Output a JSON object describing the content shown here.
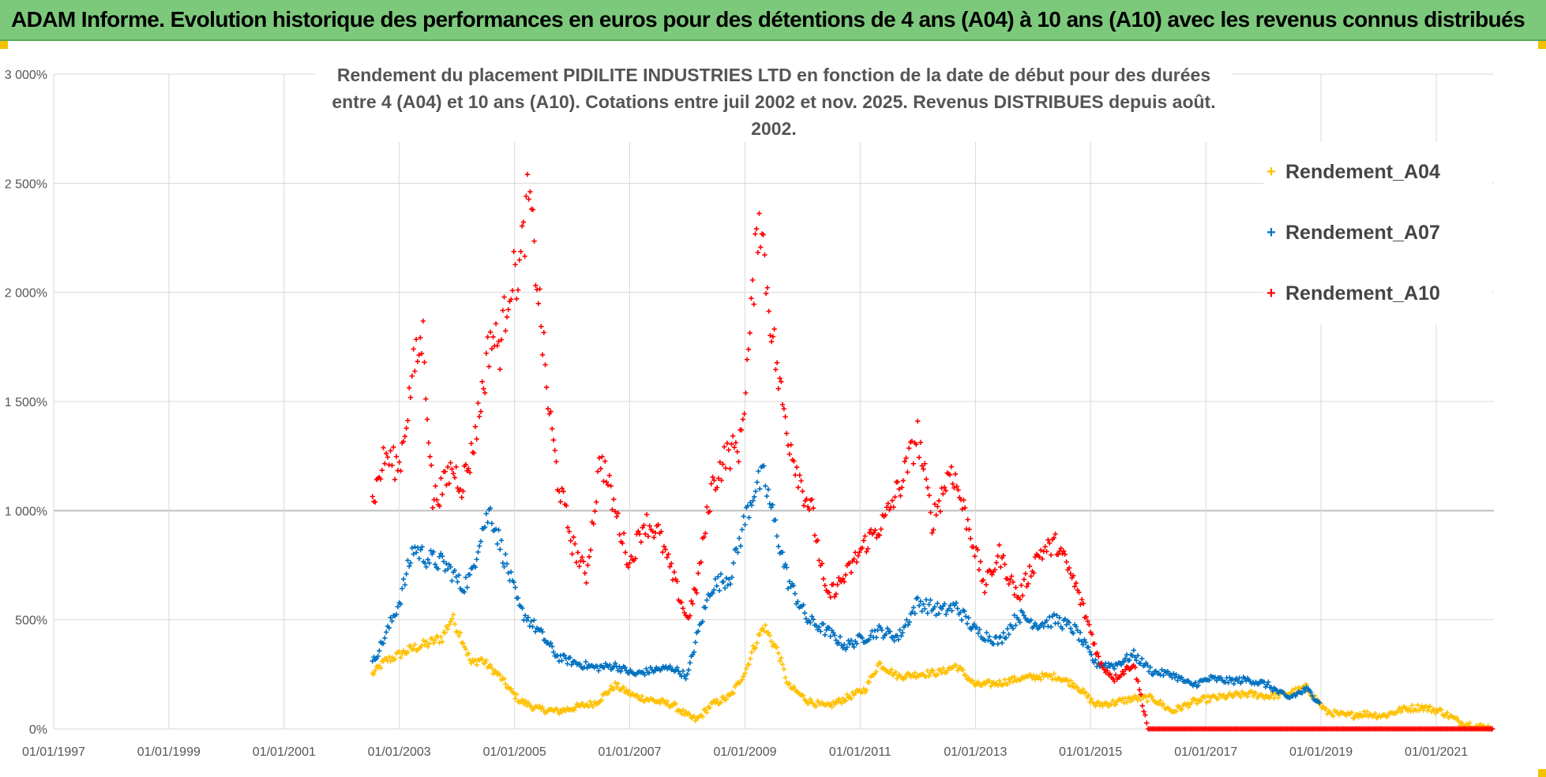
{
  "header": {
    "title": "ADAM Informe. Evolution historique des performances en euros pour des détentions de 4 ans (A04) à 10 ans (A10) avec les revenus connus distribués"
  },
  "colors": {
    "banner": "#7dc97c",
    "A04": "#ffc000",
    "A07": "#0070c0",
    "A10": "#ff0000",
    "grid": "#d9d9d9"
  },
  "chart_data": {
    "type": "scatter",
    "title": "",
    "subtitle_line1": "Rendement du placement PIDILITE INDUSTRIES LTD en fonction de la date de début pour des durées",
    "subtitle_line2": "entre 4 (A04) et 10 ans (A10). Cotations entre juil 2002 et nov. 2025. Revenus DISTRIBUES depuis août. 2002.",
    "xlabel": "",
    "ylabel": "",
    "xlim": [
      "1997-01-01",
      "2022-01-01"
    ],
    "ylim": [
      0,
      3000
    ],
    "y_unit": "%",
    "grid": true,
    "legend_position": "right",
    "x_tick_labels": [
      "01/01/1997",
      "01/01/1999",
      "01/01/2001",
      "01/01/2003",
      "01/01/2005",
      "01/01/2007",
      "01/01/2009",
      "01/01/2011",
      "01/01/2013",
      "01/01/2015",
      "01/01/2017",
      "01/01/2019",
      "01/01/2021"
    ],
    "y_tick_labels": [
      "0%",
      "500%",
      "1 000%",
      "1 500%",
      "2 000%",
      "2 500%",
      "3 000%"
    ],
    "y_tick_values": [
      0,
      500,
      1000,
      1500,
      2000,
      2500,
      3000
    ],
    "series": [
      {
        "name": "Rendement_A04",
        "marker": "+",
        "points": [
          [
            "2002-07-15",
            250
          ],
          [
            "2002-10-01",
            310
          ],
          [
            "2003-01-01",
            340
          ],
          [
            "2003-04-01",
            370
          ],
          [
            "2003-07-01",
            390
          ],
          [
            "2003-10-01",
            420
          ],
          [
            "2003-12-01",
            510
          ],
          [
            "2004-02-01",
            420
          ],
          [
            "2004-04-01",
            300
          ],
          [
            "2004-06-01",
            320
          ],
          [
            "2004-08-01",
            280
          ],
          [
            "2004-10-01",
            240
          ],
          [
            "2004-12-01",
            180
          ],
          [
            "2005-02-01",
            130
          ],
          [
            "2005-06-01",
            90
          ],
          [
            "2005-10-01",
            80
          ],
          [
            "2006-02-01",
            100
          ],
          [
            "2006-06-01",
            120
          ],
          [
            "2006-10-01",
            200
          ],
          [
            "2007-02-01",
            150
          ],
          [
            "2007-06-01",
            130
          ],
          [
            "2007-10-01",
            110
          ],
          [
            "2008-01-01",
            60
          ],
          [
            "2008-03-01",
            40
          ],
          [
            "2008-06-01",
            110
          ],
          [
            "2008-10-01",
            150
          ],
          [
            "2009-01-01",
            260
          ],
          [
            "2009-03-01",
            380
          ],
          [
            "2009-05-01",
            470
          ],
          [
            "2009-08-01",
            350
          ],
          [
            "2009-10-01",
            200
          ],
          [
            "2010-02-01",
            130
          ],
          [
            "2010-06-01",
            100
          ],
          [
            "2010-10-01",
            140
          ],
          [
            "2011-02-01",
            180
          ],
          [
            "2011-05-01",
            300
          ],
          [
            "2011-09-01",
            240
          ],
          [
            "2012-01-01",
            250
          ],
          [
            "2012-06-01",
            260
          ],
          [
            "2012-09-01",
            290
          ],
          [
            "2013-01-01",
            200
          ],
          [
            "2013-06-01",
            210
          ],
          [
            "2013-10-01",
            230
          ],
          [
            "2014-02-01",
            240
          ],
          [
            "2014-06-01",
            240
          ],
          [
            "2014-10-01",
            200
          ],
          [
            "2015-02-01",
            110
          ],
          [
            "2015-06-01",
            120
          ],
          [
            "2015-10-01",
            140
          ],
          [
            "2016-02-01",
            140
          ],
          [
            "2016-06-01",
            80
          ],
          [
            "2016-10-01",
            120
          ],
          [
            "2017-02-01",
            140
          ],
          [
            "2017-06-01",
            150
          ],
          [
            "2017-10-01",
            160
          ],
          [
            "2018-02-01",
            150
          ],
          [
            "2018-06-01",
            160
          ],
          [
            "2018-10-01",
            190
          ],
          [
            "2019-02-01",
            80
          ],
          [
            "2019-06-01",
            60
          ],
          [
            "2019-10-01",
            70
          ],
          [
            "2020-02-01",
            60
          ],
          [
            "2020-06-01",
            90
          ],
          [
            "2020-10-01",
            100
          ],
          [
            "2021-02-01",
            80
          ],
          [
            "2021-06-01",
            30
          ],
          [
            "2021-10-01",
            10
          ],
          [
            "2022-01-01",
            5
          ]
        ]
      },
      {
        "name": "Rendement_A07",
        "marker": "+",
        "points": [
          [
            "2002-07-15",
            300
          ],
          [
            "2002-10-01",
            420
          ],
          [
            "2003-01-01",
            580
          ],
          [
            "2003-04-01",
            830
          ],
          [
            "2003-07-01",
            780
          ],
          [
            "2003-10-01",
            760
          ],
          [
            "2003-12-01",
            720
          ],
          [
            "2004-02-01",
            650
          ],
          [
            "2004-04-01",
            700
          ],
          [
            "2004-06-01",
            900
          ],
          [
            "2004-08-01",
            1000
          ],
          [
            "2004-10-01",
            850
          ],
          [
            "2004-12-01",
            700
          ],
          [
            "2005-02-01",
            550
          ],
          [
            "2005-06-01",
            450
          ],
          [
            "2005-10-01",
            330
          ],
          [
            "2006-02-01",
            300
          ],
          [
            "2006-06-01",
            280
          ],
          [
            "2006-10-01",
            290
          ],
          [
            "2007-02-01",
            250
          ],
          [
            "2007-06-01",
            270
          ],
          [
            "2007-10-01",
            280
          ],
          [
            "2008-01-01",
            240
          ],
          [
            "2008-03-01",
            420
          ],
          [
            "2008-06-01",
            650
          ],
          [
            "2008-10-01",
            700
          ],
          [
            "2009-01-01",
            960
          ],
          [
            "2009-03-01",
            1100
          ],
          [
            "2009-05-01",
            1150
          ],
          [
            "2009-08-01",
            870
          ],
          [
            "2009-10-01",
            680
          ],
          [
            "2010-02-01",
            500
          ],
          [
            "2010-06-01",
            450
          ],
          [
            "2010-10-01",
            380
          ],
          [
            "2011-02-01",
            420
          ],
          [
            "2011-05-01",
            450
          ],
          [
            "2011-09-01",
            420
          ],
          [
            "2012-01-01",
            580
          ],
          [
            "2012-06-01",
            540
          ],
          [
            "2012-09-01",
            560
          ],
          [
            "2013-01-01",
            450
          ],
          [
            "2013-06-01",
            400
          ],
          [
            "2013-10-01",
            520
          ],
          [
            "2014-02-01",
            480
          ],
          [
            "2014-06-01",
            500
          ],
          [
            "2014-10-01",
            450
          ],
          [
            "2015-02-01",
            300
          ],
          [
            "2015-06-01",
            290
          ],
          [
            "2015-10-01",
            340
          ],
          [
            "2016-02-01",
            260
          ],
          [
            "2016-06-01",
            250
          ],
          [
            "2016-10-01",
            200
          ],
          [
            "2017-02-01",
            230
          ],
          [
            "2017-06-01",
            220
          ],
          [
            "2017-10-01",
            225
          ],
          [
            "2018-02-01",
            200
          ],
          [
            "2018-06-01",
            140
          ],
          [
            "2018-10-01",
            180
          ],
          [
            "2019-01-01",
            120
          ]
        ]
      },
      {
        "name": "Rendement_A10",
        "marker": "+",
        "points": [
          [
            "2002-07-15",
            1040
          ],
          [
            "2002-10-01",
            1250
          ],
          [
            "2003-01-01",
            1200
          ],
          [
            "2003-04-01",
            1650
          ],
          [
            "2003-06-01",
            1800
          ],
          [
            "2003-08-01",
            1050
          ],
          [
            "2003-10-01",
            1100
          ],
          [
            "2003-12-01",
            1200
          ],
          [
            "2004-02-01",
            1120
          ],
          [
            "2004-04-01",
            1250
          ],
          [
            "2004-06-01",
            1500
          ],
          [
            "2004-08-01",
            1800
          ],
          [
            "2004-10-01",
            1750
          ],
          [
            "2004-12-01",
            2050
          ],
          [
            "2005-02-01",
            2100
          ],
          [
            "2005-04-01",
            2450
          ],
          [
            "2005-06-01",
            2000
          ],
          [
            "2005-08-01",
            1500
          ],
          [
            "2005-10-01",
            1150
          ],
          [
            "2006-01-01",
            850
          ],
          [
            "2006-04-01",
            700
          ],
          [
            "2006-07-01",
            1250
          ],
          [
            "2006-10-01",
            1000
          ],
          [
            "2007-01-01",
            750
          ],
          [
            "2007-04-01",
            950
          ],
          [
            "2007-07-01",
            900
          ],
          [
            "2007-10-01",
            700
          ],
          [
            "2008-01-01",
            500
          ],
          [
            "2008-03-01",
            650
          ],
          [
            "2008-06-01",
            1100
          ],
          [
            "2008-09-01",
            1250
          ],
          [
            "2008-12-01",
            1300
          ],
          [
            "2009-02-01",
            1800
          ],
          [
            "2009-04-01",
            2400
          ],
          [
            "2009-06-01",
            1950
          ],
          [
            "2009-08-01",
            1600
          ],
          [
            "2009-10-01",
            1350
          ],
          [
            "2010-01-01",
            1100
          ],
          [
            "2010-03-01",
            1000
          ],
          [
            "2010-06-01",
            600
          ],
          [
            "2010-10-01",
            700
          ],
          [
            "2011-02-01",
            850
          ],
          [
            "2011-06-01",
            950
          ],
          [
            "2011-10-01",
            1150
          ],
          [
            "2012-01-01",
            1350
          ],
          [
            "2012-04-01",
            950
          ],
          [
            "2012-08-01",
            1200
          ],
          [
            "2012-12-01",
            900
          ],
          [
            "2013-03-01",
            650
          ],
          [
            "2013-06-01",
            800
          ],
          [
            "2013-10-01",
            600
          ],
          [
            "2014-02-01",
            800
          ],
          [
            "2014-06-01",
            850
          ],
          [
            "2014-10-01",
            650
          ],
          [
            "2015-01-01",
            450
          ],
          [
            "2015-03-01",
            300
          ],
          [
            "2015-06-01",
            230
          ],
          [
            "2015-10-01",
            300
          ],
          [
            "2016-01-01",
            0
          ],
          [
            "2017-01-01",
            0
          ],
          [
            "2018-01-01",
            0
          ],
          [
            "2019-01-01",
            0
          ],
          [
            "2020-01-01",
            0
          ],
          [
            "2021-01-01",
            0
          ],
          [
            "2022-01-01",
            0
          ]
        ]
      }
    ]
  }
}
